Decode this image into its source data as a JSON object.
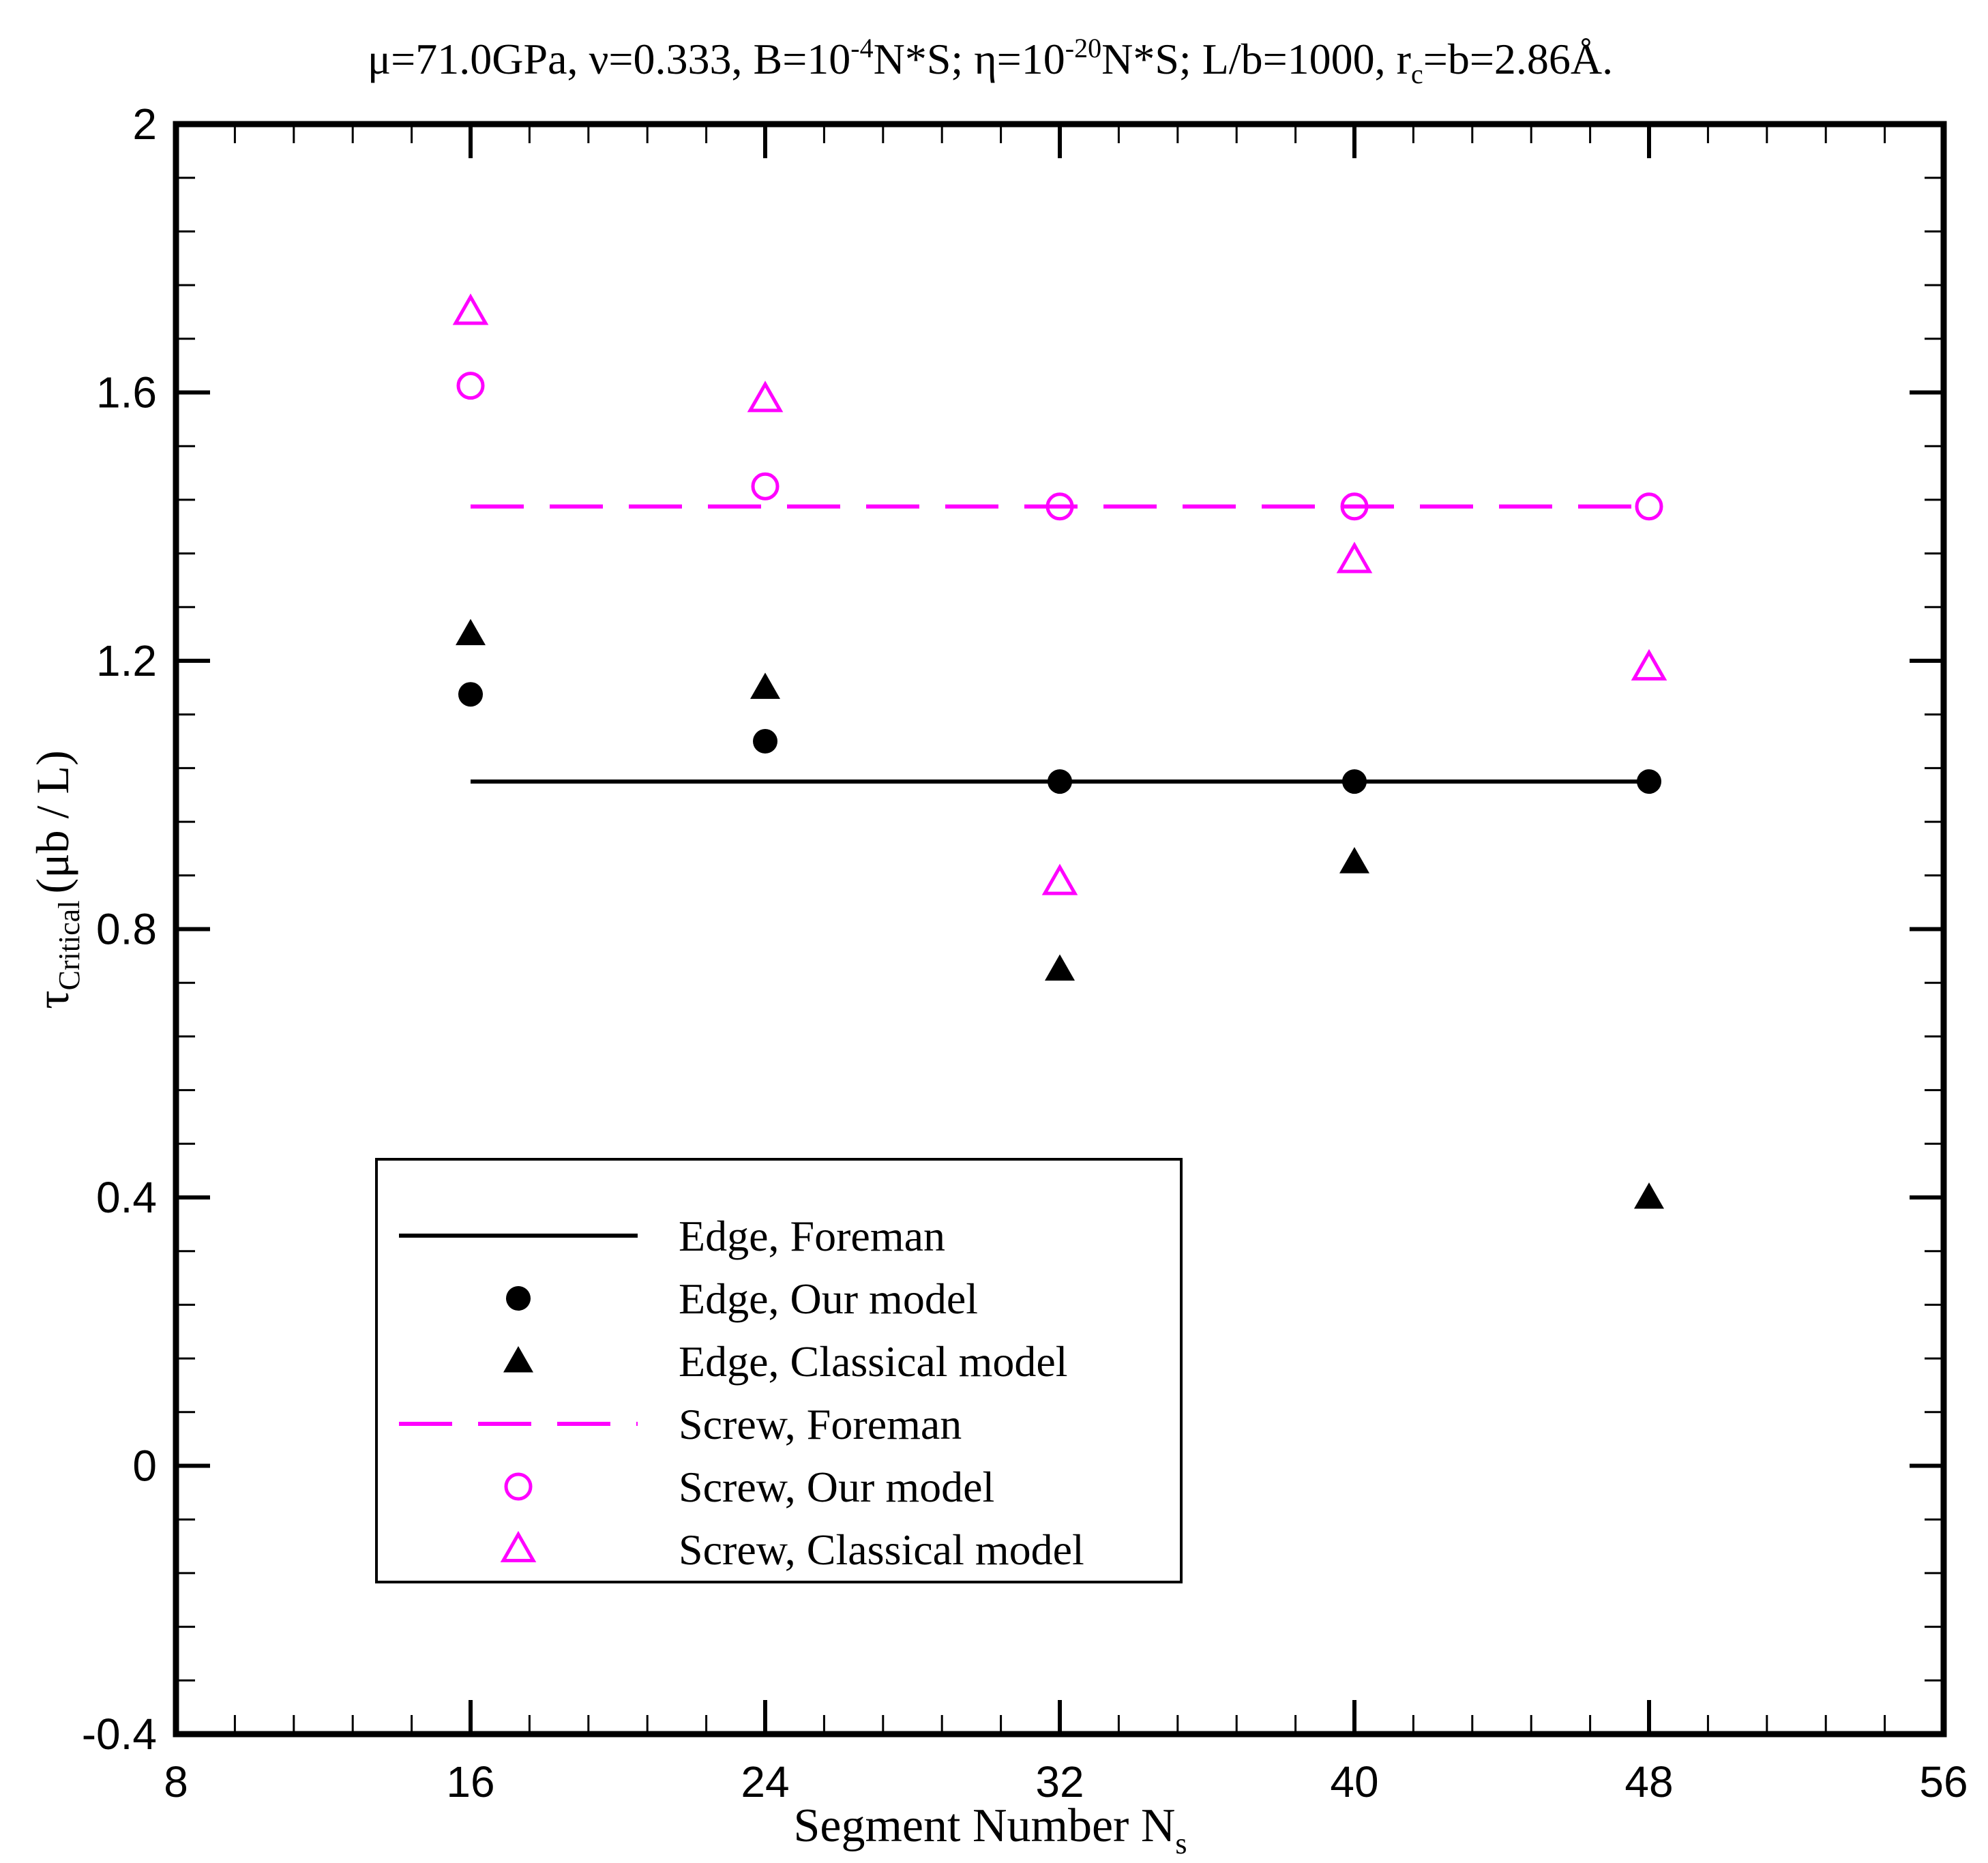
{
  "colors": {
    "edge": "#000000",
    "screw": "#ff00ff",
    "axis": "#000000",
    "background": "#ffffff"
  },
  "chart_data": {
    "type": "scatter",
    "title": {
      "mu": "μ=71.0GPa,",
      "nu": "ν=0.333,",
      "B_prefix": "B=10",
      "B_exp": "-4",
      "B_unit": "N*S;",
      "eta_prefix": "η=10",
      "eta_exp": "-20",
      "eta_unit": "N*S;",
      "Lb": "L/b=1000,",
      "r": "r",
      "rc_sub": "c",
      "rc_rest": "=b=2.86Å."
    },
    "xlabel": {
      "text": "Segment Number N",
      "sub": "s"
    },
    "ylabel": {
      "tau": "τ",
      "sub": "Critical",
      "unit": "(μb / L)"
    },
    "xlim": [
      8,
      56
    ],
    "ylim": [
      -0.4,
      2
    ],
    "xticks": [
      8,
      16,
      24,
      32,
      40,
      48,
      56
    ],
    "xtick_labels": [
      "8",
      "16",
      "24",
      "32",
      "40",
      "48",
      "56"
    ],
    "yticks": [
      -0.4,
      0,
      0.4,
      0.8,
      1.2,
      1.6,
      2
    ],
    "ytick_labels": [
      "-0.4",
      "0",
      "0.4",
      "0.8",
      "1.2",
      "1.6",
      "2"
    ],
    "x_minor_step": 1.6,
    "y_minor_step": 0.08,
    "series": [
      {
        "name": "Edge, Foreman",
        "style": "solid-line",
        "color": "#000000",
        "x": [
          16,
          48
        ],
        "y": [
          1.02,
          1.02
        ]
      },
      {
        "name": "Edge, Our model",
        "style": "filled-circle",
        "color": "#000000",
        "x": [
          16,
          24,
          32,
          40,
          48
        ],
        "y": [
          1.15,
          1.08,
          1.02,
          1.02,
          1.02
        ]
      },
      {
        "name": "Edge, Classical model",
        "style": "filled-triangle",
        "color": "#000000",
        "x": [
          16,
          24,
          32,
          40,
          48
        ],
        "y": [
          1.24,
          1.16,
          0.74,
          0.9,
          0.4
        ]
      },
      {
        "name": "Screw, Foreman",
        "style": "dashed-line",
        "color": "#ff00ff",
        "x": [
          16,
          48
        ],
        "y": [
          1.43,
          1.43
        ]
      },
      {
        "name": "Screw, Our model",
        "style": "open-circle",
        "color": "#ff00ff",
        "x": [
          16,
          24,
          32,
          40,
          48
        ],
        "y": [
          1.61,
          1.46,
          1.43,
          1.43,
          1.43
        ]
      },
      {
        "name": "Screw, Classical model",
        "style": "open-triangle",
        "color": "#ff00ff",
        "x": [
          16,
          24,
          32,
          40,
          48
        ],
        "y": [
          1.72,
          1.59,
          0.87,
          1.35,
          1.19
        ]
      }
    ],
    "legend": {
      "position": "bottom-left"
    }
  }
}
